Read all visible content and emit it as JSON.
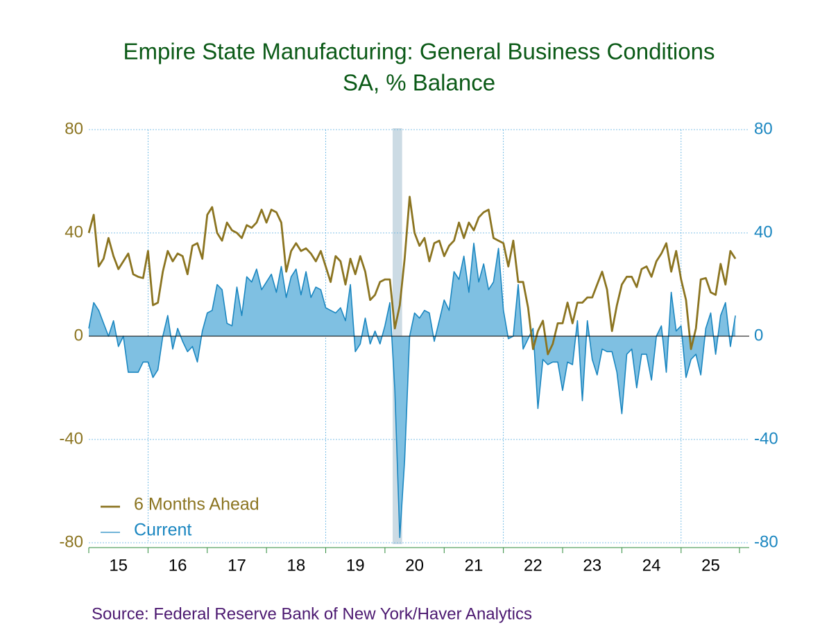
{
  "chart_data": {
    "type": "line",
    "title": "Empire State Manufacturing: General Business Conditions",
    "subtitle": "SA, % Balance",
    "source": "Source:  Federal Reserve Bank of New York/Haver Analytics",
    "x": [
      15,
      15.083,
      15.167,
      15.25,
      15.333,
      15.417,
      15.5,
      15.583,
      15.667,
      15.75,
      15.833,
      15.917,
      16,
      16.083,
      16.167,
      16.25,
      16.333,
      16.417,
      16.5,
      16.583,
      16.667,
      16.75,
      16.833,
      16.917,
      17,
      17.083,
      17.167,
      17.25,
      17.333,
      17.417,
      17.5,
      17.583,
      17.667,
      17.75,
      17.833,
      17.917,
      18,
      18.083,
      18.167,
      18.25,
      18.333,
      18.417,
      18.5,
      18.583,
      18.667,
      18.75,
      18.833,
      18.917,
      19,
      19.083,
      19.167,
      19.25,
      19.333,
      19.417,
      19.5,
      19.583,
      19.667,
      19.75,
      19.833,
      19.917,
      20,
      20.083,
      20.167,
      20.25,
      20.333,
      20.417,
      20.5,
      20.583,
      20.667,
      20.75,
      20.833,
      20.917,
      21,
      21.083,
      21.167,
      21.25,
      21.333,
      21.417,
      21.5,
      21.583,
      21.667,
      21.75,
      21.833,
      21.917,
      22,
      22.083,
      22.167,
      22.25,
      22.333,
      22.417,
      22.5,
      22.583,
      22.667,
      22.75,
      22.833,
      22.917,
      23,
      23.083,
      23.167,
      23.25,
      23.333,
      23.417,
      23.5,
      23.583,
      23.667,
      23.75,
      23.833,
      23.917,
      24,
      24.083,
      24.167,
      24.25,
      24.333,
      24.417,
      24.5,
      24.583,
      24.667,
      24.75,
      24.833,
      24.917,
      25,
      25.083,
      25.167,
      25.25,
      25.333,
      25.417,
      25.5,
      25.583,
      25.667,
      25.75,
      25.833,
      25.917
    ],
    "series": [
      {
        "name": "6 Months Ahead",
        "color": "#8b7420",
        "values": [
          40,
          47,
          27,
          30,
          38,
          31,
          26,
          29,
          32,
          24,
          23,
          22.5,
          33,
          12,
          13,
          25,
          33,
          29,
          32,
          31,
          24,
          35,
          36,
          30,
          47,
          50,
          40,
          37,
          44,
          41,
          40,
          38,
          43,
          42,
          44,
          49,
          44,
          49,
          48,
          44,
          25,
          33,
          36,
          33,
          34,
          32,
          29,
          33,
          27,
          21,
          31,
          29,
          20,
          30,
          24,
          31,
          25,
          14,
          16,
          21,
          22,
          22,
          3,
          12,
          30,
          54,
          40,
          35,
          38,
          29,
          36,
          37,
          31,
          35,
          37,
          44,
          38,
          44,
          41,
          46,
          48,
          49,
          38,
          37,
          36,
          27,
          37,
          21,
          21,
          11,
          -5,
          2,
          6,
          -7,
          -3,
          5,
          5,
          13,
          5,
          13,
          13,
          15,
          15,
          20,
          25,
          18,
          2,
          12,
          20,
          23,
          23,
          19,
          26,
          27,
          23,
          29,
          32,
          36,
          25,
          33,
          22,
          14,
          -5,
          3,
          22,
          22.5,
          17,
          16,
          28,
          20,
          33,
          30
        ]
      },
      {
        "name": "Current",
        "color": "#1a86c0",
        "fill": "#7fc0e2",
        "axis": "y2",
        "values": [
          3,
          13,
          10,
          5,
          0,
          6,
          -4,
          0,
          -14,
          -14,
          -14,
          -10,
          -10,
          -16,
          -13,
          0,
          8,
          -5,
          3,
          -2,
          -6,
          -4,
          -10,
          2,
          9,
          10,
          20,
          18,
          5,
          4,
          19,
          8,
          23,
          21,
          26,
          18,
          21,
          24,
          17,
          27,
          15,
          23,
          26,
          16,
          25,
          15,
          19,
          18,
          11,
          10,
          9,
          11,
          6,
          20,
          -6,
          -3,
          7,
          -3,
          2,
          -3,
          4,
          13,
          -21,
          -78,
          -48,
          0,
          9,
          7,
          10,
          9,
          -2,
          6,
          14,
          10,
          25,
          22,
          31,
          17,
          36,
          21,
          28,
          18,
          21,
          34,
          10,
          -1,
          0,
          20,
          -5,
          -1,
          3,
          -28,
          -9,
          -11,
          -10,
          -10,
          -21,
          -10,
          -11,
          6,
          -25,
          6,
          -9,
          -15,
          -5,
          -6,
          -6,
          -14,
          -30,
          -7,
          -5,
          -20,
          -7,
          -7,
          -17,
          0,
          4,
          -14,
          17,
          2,
          4,
          -16,
          -9,
          -7,
          -15,
          3,
          9,
          -7,
          8,
          13,
          -4,
          8
        ]
      }
    ],
    "xlim": [
      15,
      26.15
    ],
    "xticks": [
      {
        "value": 15,
        "label": "15"
      },
      {
        "value": 16,
        "label": "16"
      },
      {
        "value": 17,
        "label": "17"
      },
      {
        "value": 18,
        "label": "18"
      },
      {
        "value": 19,
        "label": "19"
      },
      {
        "value": 20,
        "label": "20"
      },
      {
        "value": 21,
        "label": "21"
      },
      {
        "value": 22,
        "label": "22"
      },
      {
        "value": 23,
        "label": "23"
      },
      {
        "value": 24,
        "label": "24"
      },
      {
        "value": 25,
        "label": "25"
      }
    ],
    "xgrid": [
      16,
      19,
      22,
      25
    ],
    "recession": [
      20.13,
      20.29
    ],
    "ylim": [
      -80,
      80
    ],
    "yticks": [
      -80,
      -40,
      0,
      40,
      80
    ],
    "ycolor": "#8b7420",
    "y2lim": [
      -80,
      80
    ],
    "y2ticks": [
      -80,
      -40,
      0,
      40,
      80
    ],
    "y2color": "#1a86c0",
    "grid": true,
    "legend": "lower left"
  }
}
